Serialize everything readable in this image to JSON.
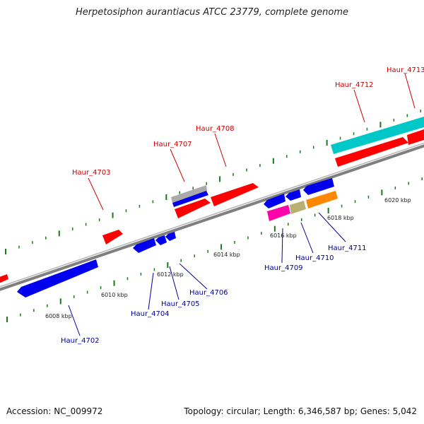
{
  "title": "Herpetosiphon aurantiacus ATCC 23779, complete genome",
  "footer": {
    "accession": "Accession: NC_009972",
    "summary": "Topology: circular; Length: 6,346,587 bp; Genes: 5,042"
  },
  "colors": {
    "forward_gene": "#ff0000",
    "reverse_gene": "#0000ff",
    "backbone": "#8a8a8a",
    "tick": "#1a7a1a",
    "forward_label": "#cc0000",
    "reverse_label": "#00009a"
  },
  "scale_labels": [
    "6008 kbp",
    "6010 kbp",
    "6012 kbp",
    "6014 kbp",
    "6016 kbp",
    "6018 kbp",
    "6020 kbp"
  ],
  "gene_labels": {
    "forward": [
      "Haur_4703",
      "Haur_4707",
      "Haur_4708",
      "Haur_4712",
      "Haur_4713"
    ],
    "reverse": [
      "Haur_4702",
      "Haur_4704",
      "Haur_4705",
      "Haur_4706",
      "Haur_4709",
      "Haur_4710",
      "Haur_4711"
    ]
  }
}
